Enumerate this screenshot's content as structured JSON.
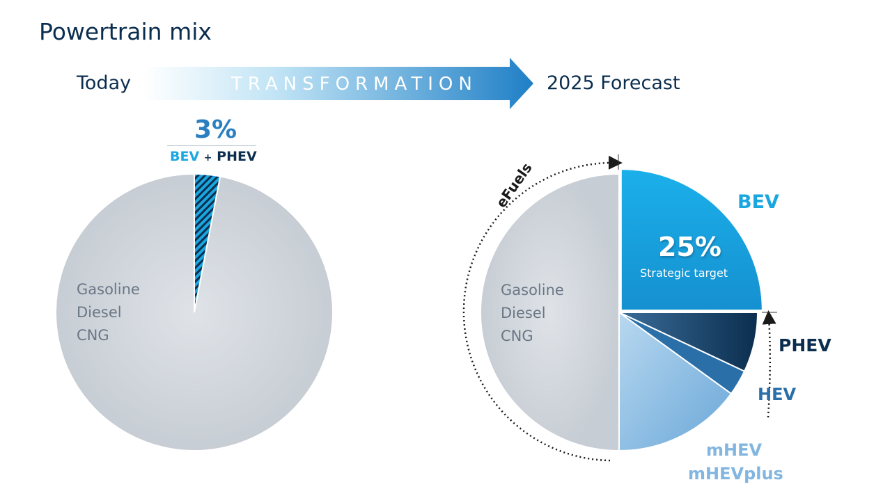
{
  "title": "Powertrain mix",
  "stages": {
    "today": "Today",
    "transformation": "TRANSFORMATION",
    "forecast": "2025 Forecast"
  },
  "today_callout": {
    "percent": "3%",
    "bev": "BEV",
    "plus": "+",
    "phev": "PHEV"
  },
  "forecast_callout": {
    "percent": "25%",
    "note": "Strategic target",
    "efuels": "eFuels"
  },
  "colors": {
    "ice_gray": "#d4d9df",
    "bev": "#1aa7e0",
    "phev": "#0b2e4f",
    "hev": "#2a6fa8",
    "mhev": "#82b6e0",
    "title": "#0b2e4f"
  },
  "chart_data": [
    {
      "type": "pie",
      "title": "Today",
      "slices": [
        {
          "label": "BEV + PHEV",
          "value": 3,
          "color": "#1aa7e0",
          "pattern": "hatched"
        },
        {
          "label": "Gasoline Diesel CNG",
          "value": 97,
          "color": "#d4d9df"
        }
      ],
      "inner_label_lines": [
        "Gasoline",
        "Diesel",
        "CNG"
      ]
    },
    {
      "type": "pie",
      "title": "2025 Forecast",
      "slices": [
        {
          "label": "BEV",
          "value": 25,
          "color": "#1aa7e0",
          "exploded": true
        },
        {
          "label": "PHEV",
          "value": 7,
          "color": "#0b2e4f"
        },
        {
          "label": "HEV",
          "value": 3,
          "color": "#2a6fa8"
        },
        {
          "label": "mHEV mHEVplus",
          "value": 15,
          "color": "#82b6e0"
        },
        {
          "label": "Gasoline Diesel CNG",
          "value": 50,
          "color": "#d4d9df"
        }
      ],
      "inner_label_lines": [
        "Gasoline",
        "Diesel",
        "CNG"
      ],
      "annotation": "eFuels"
    }
  ]
}
